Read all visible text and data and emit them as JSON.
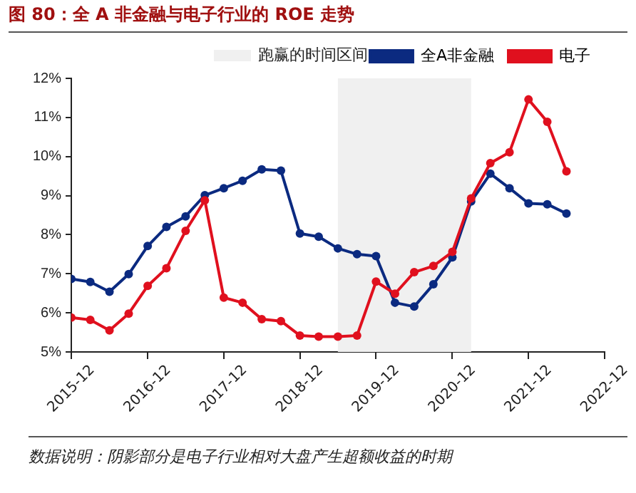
{
  "chart_data": {
    "type": "line",
    "title": "图 80：全 A 非金融与电子行业的 ROE 走势",
    "x": [
      "2015-12",
      "2016-03",
      "2016-06",
      "2016-09",
      "2016-12",
      "2017-03",
      "2017-06",
      "2017-09",
      "2017-12",
      "2018-03",
      "2018-06",
      "2018-09",
      "2018-12",
      "2019-03",
      "2019-06",
      "2019-09",
      "2019-12",
      "2020-03",
      "2020-06",
      "2020-09",
      "2020-12",
      "2021-03",
      "2021-06",
      "2021-09",
      "2021-12",
      "2022-03",
      "2022-06"
    ],
    "series": [
      {
        "name": "全A非金融",
        "color": "#0b2a80",
        "values": [
          6.87,
          6.79,
          6.54,
          6.99,
          7.71,
          8.2,
          8.47,
          9.01,
          9.19,
          9.38,
          9.67,
          9.64,
          8.03,
          7.95,
          7.65,
          7.5,
          7.45,
          6.26,
          6.16,
          6.73,
          7.42,
          8.85,
          9.56,
          9.19,
          8.8,
          8.78,
          8.54
        ]
      },
      {
        "name": "电子",
        "color": "#e0101e",
        "values": [
          5.88,
          5.82,
          5.55,
          5.98,
          6.69,
          7.14,
          8.1,
          8.88,
          6.39,
          6.26,
          5.84,
          5.79,
          5.42,
          5.39,
          5.39,
          5.42,
          6.8,
          6.49,
          7.04,
          7.2,
          7.56,
          8.93,
          9.83,
          10.11,
          11.46,
          10.89,
          9.62
        ]
      }
    ],
    "xlim": [
      "2015-12",
      "2022-12"
    ],
    "xticks": [
      "2015-12",
      "2016-12",
      "2017-12",
      "2018-12",
      "2019-12",
      "2020-12",
      "2021-12",
      "2022-12"
    ],
    "ylim": [
      5,
      12
    ],
    "yticks": [
      {
        "value": 5,
        "label": "5%"
      },
      {
        "value": 6,
        "label": "6%"
      },
      {
        "value": 7,
        "label": "7%"
      },
      {
        "value": 8,
        "label": "8%"
      },
      {
        "value": 9,
        "label": "9%"
      },
      {
        "value": 10,
        "label": "10%"
      },
      {
        "value": 11,
        "label": "11%"
      },
      {
        "value": 12,
        "label": "12%"
      }
    ],
    "bands": [
      {
        "axis": "x",
        "from": "2019-06",
        "to": "2021-03",
        "label": "跑赢的时间区间",
        "color": "#f0f0f0"
      }
    ],
    "annotations": [
      "数据说明：阴影部分是电子行业相对大盘产生超额收益的时期"
    ],
    "legend": "top right",
    "marker": "circle",
    "line_style": "solid",
    "grid": false
  }
}
